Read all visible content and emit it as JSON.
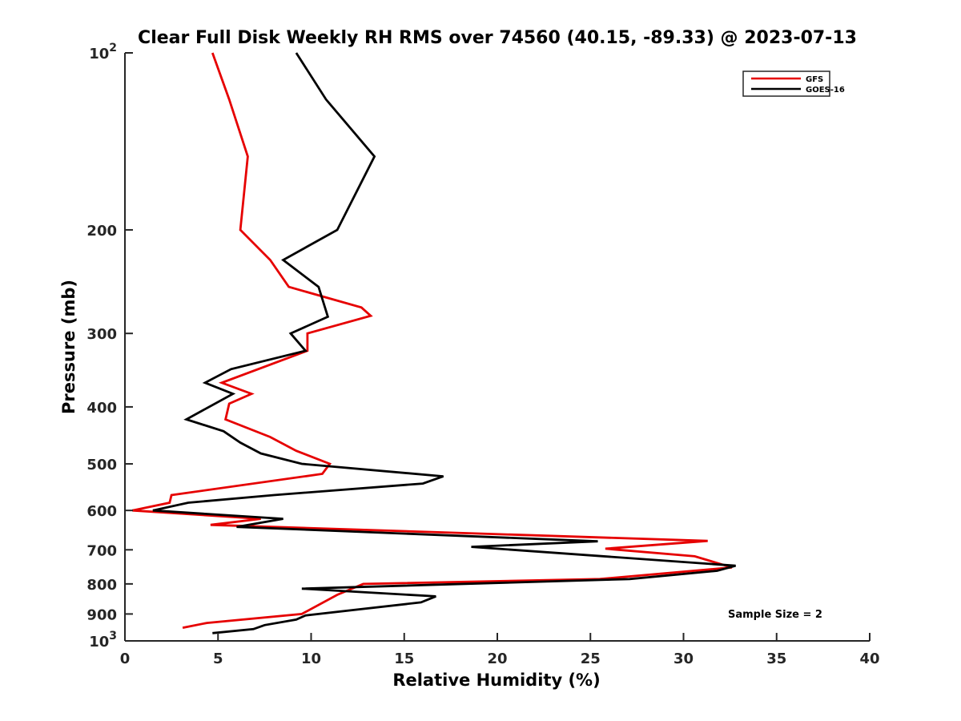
{
  "chart_data": {
    "type": "line",
    "title": "Clear Full Disk Weekly RH RMS over 74560 (40.15, -89.33) @ 2023-07-13",
    "xlabel": "Relative Humidity (%)",
    "ylabel": "Pressure (mb)",
    "xlim": [
      0,
      40
    ],
    "ylim": [
      100,
      1000
    ],
    "y_scale": "log",
    "y_reversed": true,
    "x_ticks": [
      0,
      5,
      10,
      15,
      20,
      25,
      30,
      35,
      40
    ],
    "y_ticks": [
      {
        "value": 100,
        "label": "10",
        "exp": "2"
      },
      {
        "value": 200,
        "label": "200"
      },
      {
        "value": 300,
        "label": "300"
      },
      {
        "value": 400,
        "label": "400"
      },
      {
        "value": 500,
        "label": "500"
      },
      {
        "value": 600,
        "label": "600"
      },
      {
        "value": 700,
        "label": "700"
      },
      {
        "value": 800,
        "label": "800"
      },
      {
        "value": 900,
        "label": "900"
      },
      {
        "value": 1000,
        "label": "10",
        "exp": "3"
      }
    ],
    "grid": false,
    "legend_position": "top-right",
    "annotation": "Sample Size = 2",
    "series": [
      {
        "name": "GFS",
        "color": "#e60000",
        "points": [
          [
            4.7,
            100
          ],
          [
            5.6,
            120
          ],
          [
            6.6,
            150
          ],
          [
            6.2,
            200
          ],
          [
            7.8,
            225
          ],
          [
            8.8,
            250
          ],
          [
            12.7,
            271
          ],
          [
            13.2,
            280
          ],
          [
            9.8,
            300
          ],
          [
            9.8,
            321
          ],
          [
            5.2,
            364
          ],
          [
            6.8,
            380
          ],
          [
            5.6,
            395
          ],
          [
            5.4,
            420
          ],
          [
            7.8,
            450
          ],
          [
            9.2,
            475
          ],
          [
            11.0,
            500
          ],
          [
            10.6,
            520
          ],
          [
            2.5,
            565
          ],
          [
            2.4,
            582
          ],
          [
            0.4,
            600
          ],
          [
            7.3,
            620
          ],
          [
            4.6,
            635
          ],
          [
            31.3,
            676
          ],
          [
            25.8,
            697
          ],
          [
            30.6,
            718
          ],
          [
            32.6,
            750
          ],
          [
            25.5,
            785
          ],
          [
            12.8,
            800
          ],
          [
            11.4,
            835
          ],
          [
            9.5,
            900
          ],
          [
            4.4,
            932
          ],
          [
            3.1,
            950
          ]
        ]
      },
      {
        "name": "GOES-16",
        "color": "#000000",
        "points": [
          [
            9.2,
            100
          ],
          [
            10.8,
            120
          ],
          [
            13.4,
            150
          ],
          [
            11.4,
            200
          ],
          [
            8.5,
            225
          ],
          [
            10.4,
            250
          ],
          [
            10.9,
            281
          ],
          [
            8.9,
            300
          ],
          [
            9.7,
            321
          ],
          [
            5.7,
            345
          ],
          [
            4.3,
            364
          ],
          [
            5.8,
            380
          ],
          [
            3.3,
            420
          ],
          [
            5.3,
            440
          ],
          [
            6.2,
            460
          ],
          [
            7.3,
            480
          ],
          [
            9.5,
            500
          ],
          [
            17.1,
            525
          ],
          [
            16.0,
            540
          ],
          [
            8.0,
            565
          ],
          [
            3.4,
            582
          ],
          [
            1.5,
            600
          ],
          [
            8.5,
            620
          ],
          [
            6.0,
            640
          ],
          [
            25.4,
            677
          ],
          [
            18.6,
            692
          ],
          [
            32.8,
            745
          ],
          [
            31.8,
            760
          ],
          [
            27.1,
            785
          ],
          [
            9.5,
            815
          ],
          [
            16.7,
            840
          ],
          [
            15.9,
            860
          ],
          [
            9.7,
            905
          ],
          [
            9.2,
            920
          ],
          [
            7.5,
            940
          ],
          [
            6.9,
            955
          ],
          [
            4.7,
            970
          ]
        ]
      }
    ]
  }
}
